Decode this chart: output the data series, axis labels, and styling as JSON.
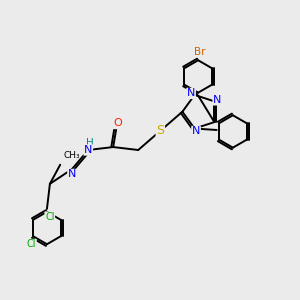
{
  "background_color": "#ebebeb",
  "atom_colors": {
    "N": "#0000ff",
    "O": "#ff2200",
    "S": "#ccaa00",
    "Br": "#cc6600",
    "Cl": "#00aa00",
    "C": "#000000",
    "H": "#008888"
  },
  "bond_color": "#000000",
  "bond_width": 1.4,
  "font_size_atoms": 8,
  "font_size_small": 6.5
}
